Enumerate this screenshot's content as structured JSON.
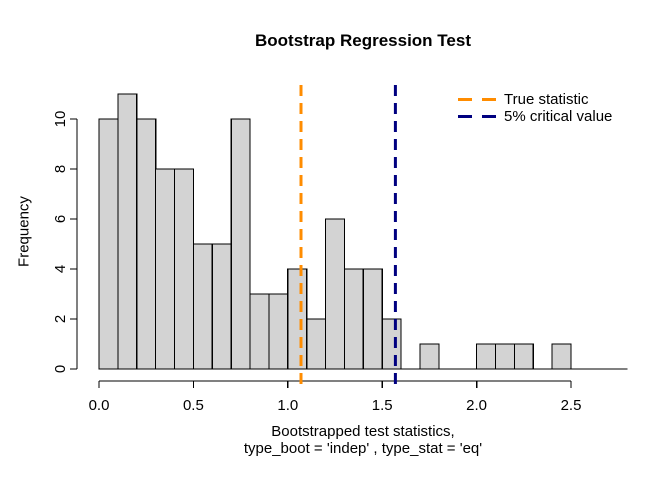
{
  "window": {
    "background": "#FFFFFF"
  },
  "title": "Bootstrap Regression Test",
  "chart_data": {
    "type": "bar",
    "subtype": "histogram",
    "title": "Bootstrap Regression Test",
    "xlabel_line1": "Bootstrapped test statistics,",
    "xlabel_line2": "type_boot = 'indep' , type_stat = 'eq'",
    "ylabel": "Frequency",
    "bin_start": 0.0,
    "bin_width": 0.1,
    "counts": [
      10,
      11,
      10,
      8,
      8,
      5,
      5,
      10,
      3,
      3,
      4,
      2,
      6,
      4,
      4,
      2,
      0,
      1,
      0,
      0,
      1,
      1,
      1,
      0,
      1,
      0,
      0,
      0
    ],
    "x_ticks": [
      0.0,
      0.5,
      1.0,
      1.5,
      2.0,
      2.5
    ],
    "x_tick_labels": [
      "0.0",
      "0.5",
      "1.0",
      "1.5",
      "2.0",
      "2.5"
    ],
    "y_ticks": [
      0,
      2,
      4,
      6,
      8,
      10
    ],
    "y_tick_labels": [
      "0",
      "2",
      "4",
      "6",
      "8",
      "10"
    ],
    "xlim": [
      0.0,
      2.8
    ],
    "ylim": [
      0,
      11
    ],
    "grid": false,
    "bar_fill": "#D3D3D3",
    "bar_border": "#000000",
    "axis_color": "#000000",
    "vlines": [
      {
        "value": 1.07,
        "color": "#FF8C00",
        "style": "dashed",
        "label": "True statistic"
      },
      {
        "value": 1.57,
        "color": "#000080",
        "style": "dashed",
        "label": "5% critical value"
      }
    ],
    "legend_position": "top-right"
  },
  "legend": {
    "items": [
      {
        "label": "True statistic",
        "color": "#FF8C00"
      },
      {
        "label": "5% critical value",
        "color": "#000080"
      }
    ]
  }
}
